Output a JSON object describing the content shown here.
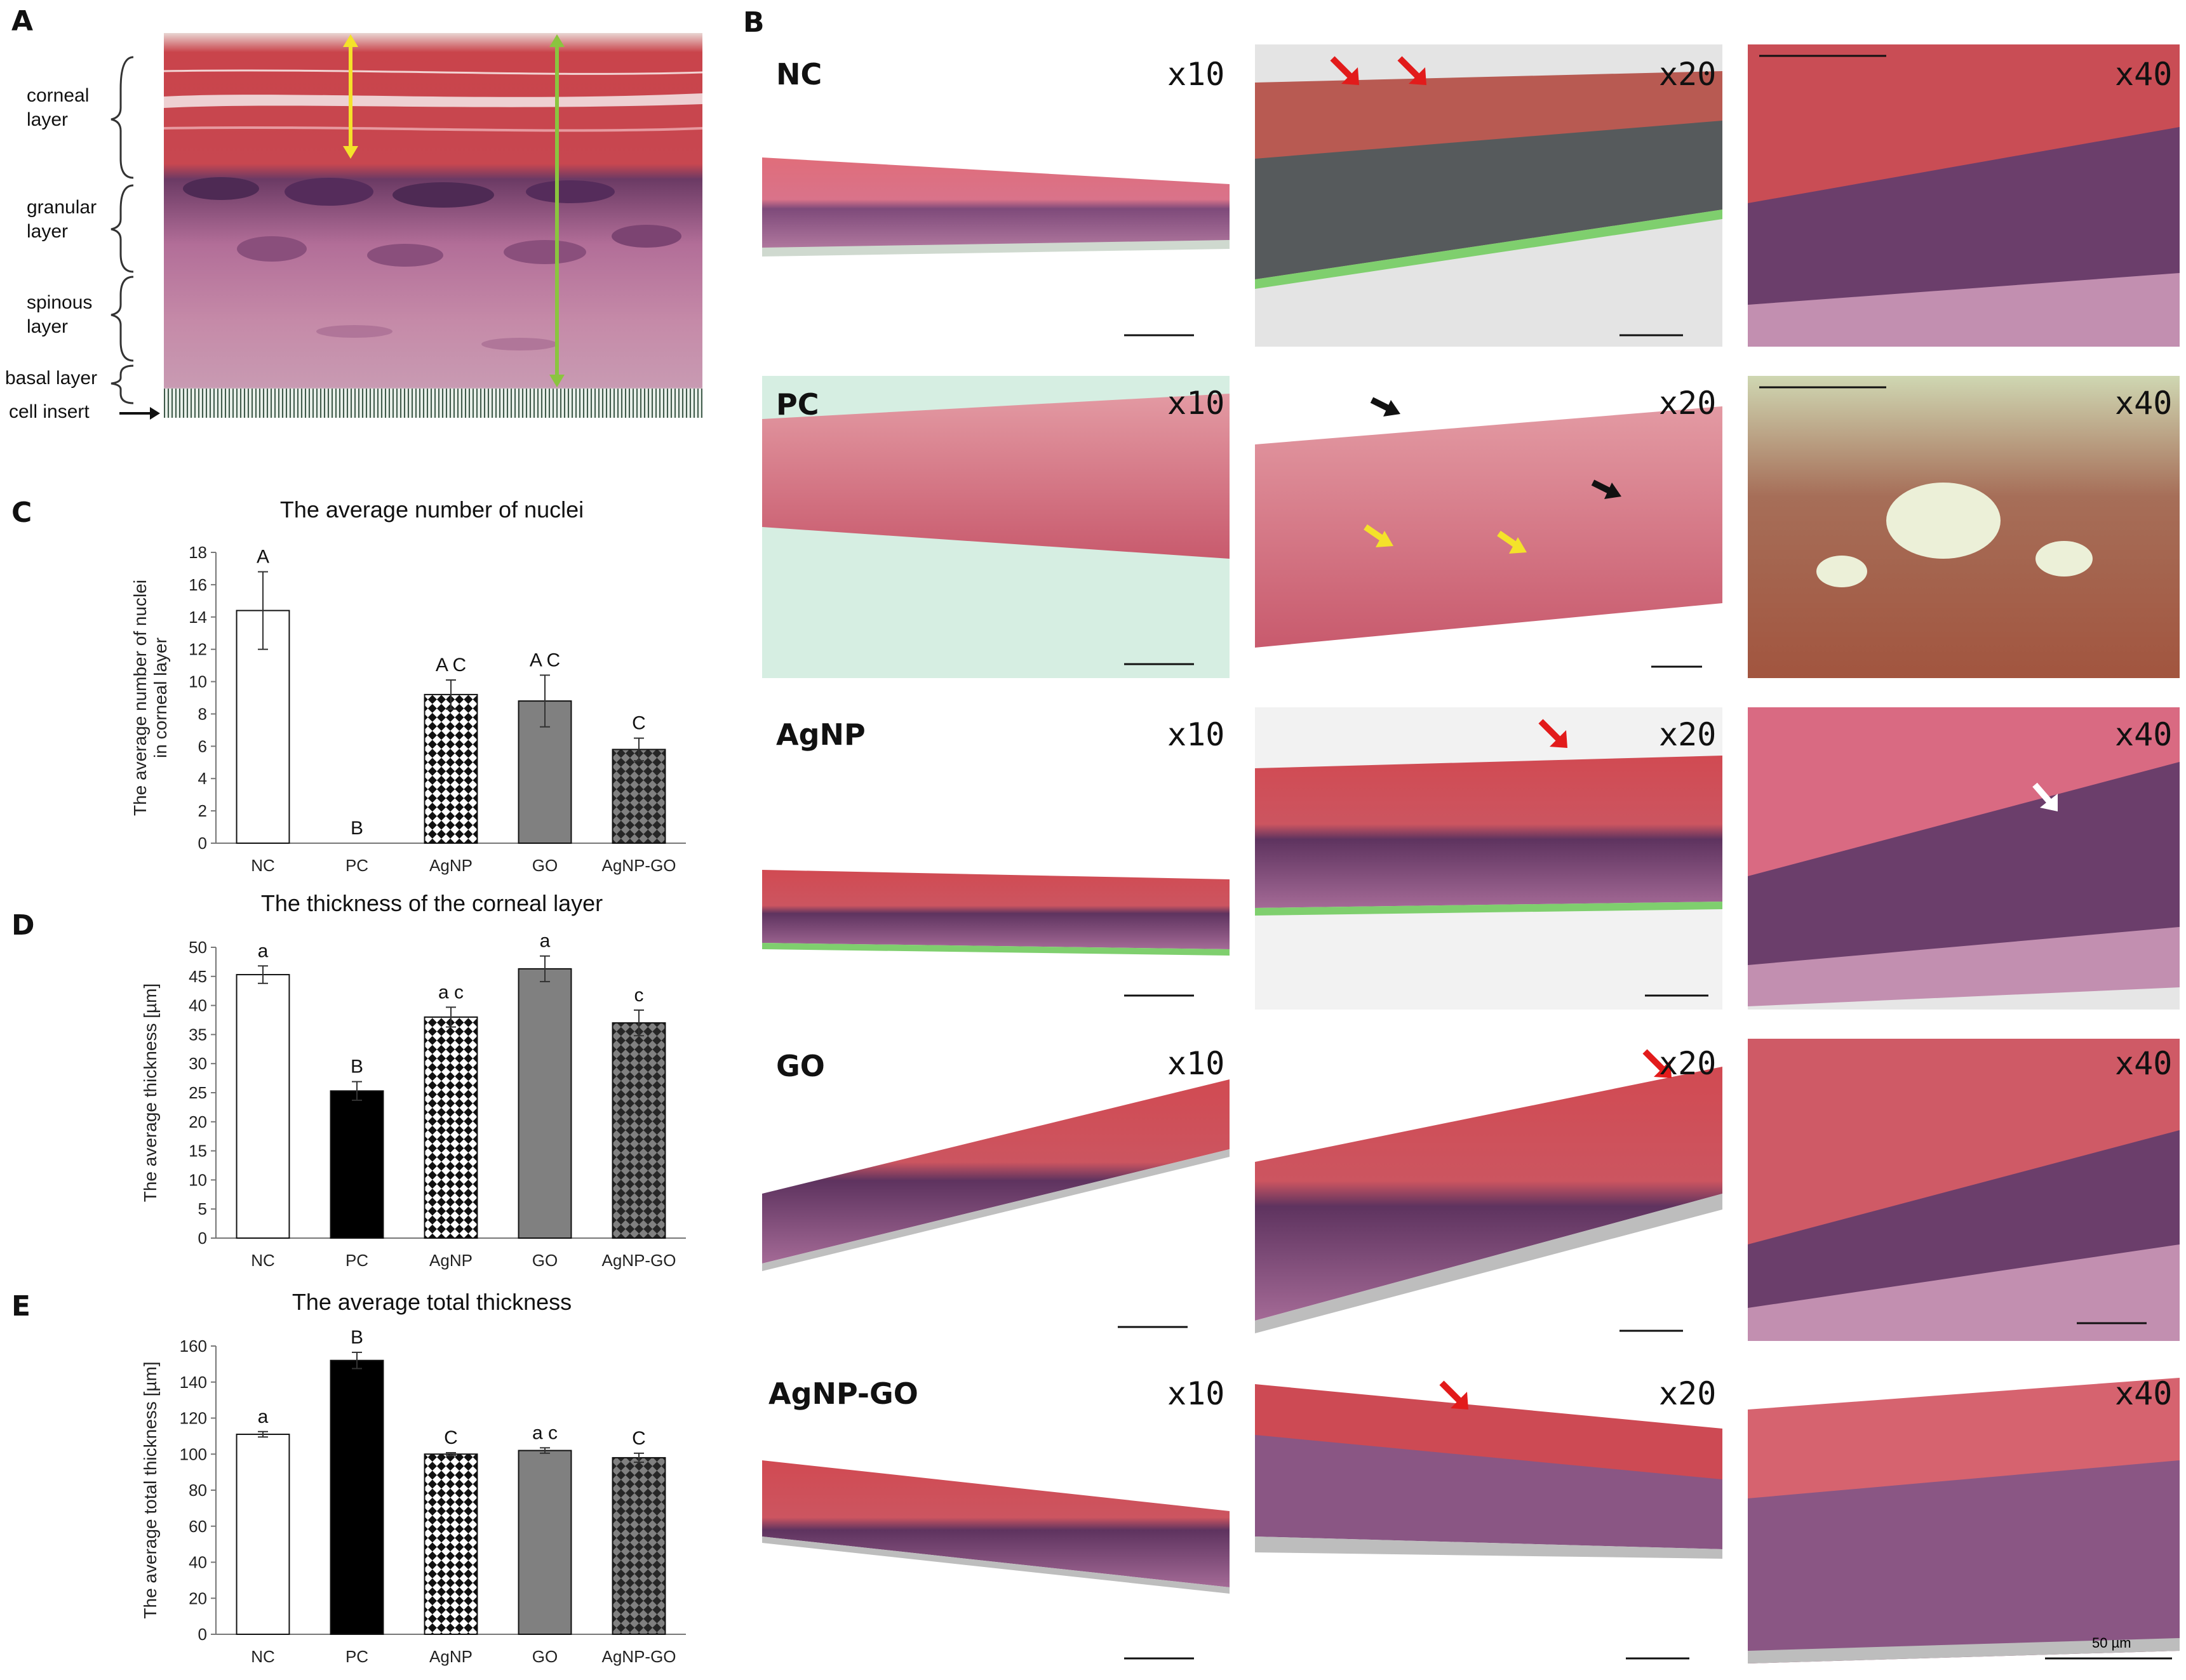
{
  "panel_a": {
    "letter": "A",
    "layers": [
      "corneal layer",
      "granular layer",
      "spinous layer",
      "basal layer",
      "cell insert"
    ]
  },
  "panel_b": {
    "letter": "B",
    "groups": [
      "NC",
      "PC",
      "AgNP",
      "GO",
      "AgNP-GO"
    ],
    "magnifications": [
      "x10",
      "x20",
      "x40"
    ],
    "scale_bar_label": "50 µm"
  },
  "colors": {
    "he_pink": "#d9738a",
    "corneal_red": "#c8434a",
    "nuclei_purple": "#5a2d5e",
    "insert_green": "#7fcf6e",
    "pc_background": "#cfe9dc",
    "arrow_red": "#e21b1b",
    "arrow_yellow": "#f4e22a",
    "arrow_green": "#8bc43f",
    "bar_gray": "#808080"
  },
  "chart_data": [
    {
      "panel": "C",
      "type": "bar",
      "title": "The average number of nuclei",
      "ylabel": "The average number of nuclei in corneal layer",
      "ylabel_lines": [
        "The average number of nuclei",
        "in corneal layer"
      ],
      "categories": [
        "NC",
        "PC",
        "AgNP",
        "GO",
        "AgNP-GO"
      ],
      "values": [
        14.4,
        0,
        9.2,
        8.8,
        5.8
      ],
      "errors": [
        2.4,
        0,
        0.9,
        1.6,
        0.7
      ],
      "labels": [
        "A",
        "B",
        "A C",
        "A C",
        "C"
      ],
      "fills": [
        "white",
        "black",
        "checker",
        "gray",
        "darkchecker"
      ],
      "ylim": [
        0,
        18
      ],
      "yticks": [
        0,
        2,
        4,
        6,
        8,
        10,
        12,
        14,
        16,
        18
      ]
    },
    {
      "panel": "D",
      "type": "bar",
      "title": "The thickness of the corneal layer",
      "ylabel": "The average thickness [µm]",
      "ylabel_lines": [
        "The average thickness [µm]"
      ],
      "categories": [
        "NC",
        "PC",
        "AgNP",
        "GO",
        "AgNP-GO"
      ],
      "values": [
        45.3,
        25.3,
        38,
        46.3,
        37
      ],
      "errors": [
        1.5,
        1.6,
        1.7,
        2.2,
        2.2
      ],
      "labels": [
        "a",
        "B",
        "a c",
        "a",
        "c"
      ],
      "fills": [
        "white",
        "black",
        "checker",
        "gray",
        "darkchecker"
      ],
      "ylim": [
        0,
        50
      ],
      "yticks": [
        0,
        5,
        10,
        15,
        20,
        25,
        30,
        35,
        40,
        45,
        50
      ]
    },
    {
      "panel": "E",
      "type": "bar",
      "title": "The average total thickness",
      "ylabel": "The average total thickness [µm]",
      "ylabel_lines": [
        "The average total thickness [µm]"
      ],
      "categories": [
        "NC",
        "PC",
        "AgNP",
        "GO",
        "AgNP-GO"
      ],
      "values": [
        111,
        152,
        100,
        102,
        98
      ],
      "errors": [
        1.5,
        4.5,
        0.8,
        1.5,
        2.5
      ],
      "labels": [
        "a",
        "B",
        "C",
        "a c",
        "C"
      ],
      "fills": [
        "white",
        "black",
        "checker",
        "gray",
        "darkchecker"
      ],
      "ylim": [
        0,
        160
      ],
      "yticks": [
        0,
        20,
        40,
        60,
        80,
        100,
        120,
        140,
        160
      ]
    }
  ]
}
